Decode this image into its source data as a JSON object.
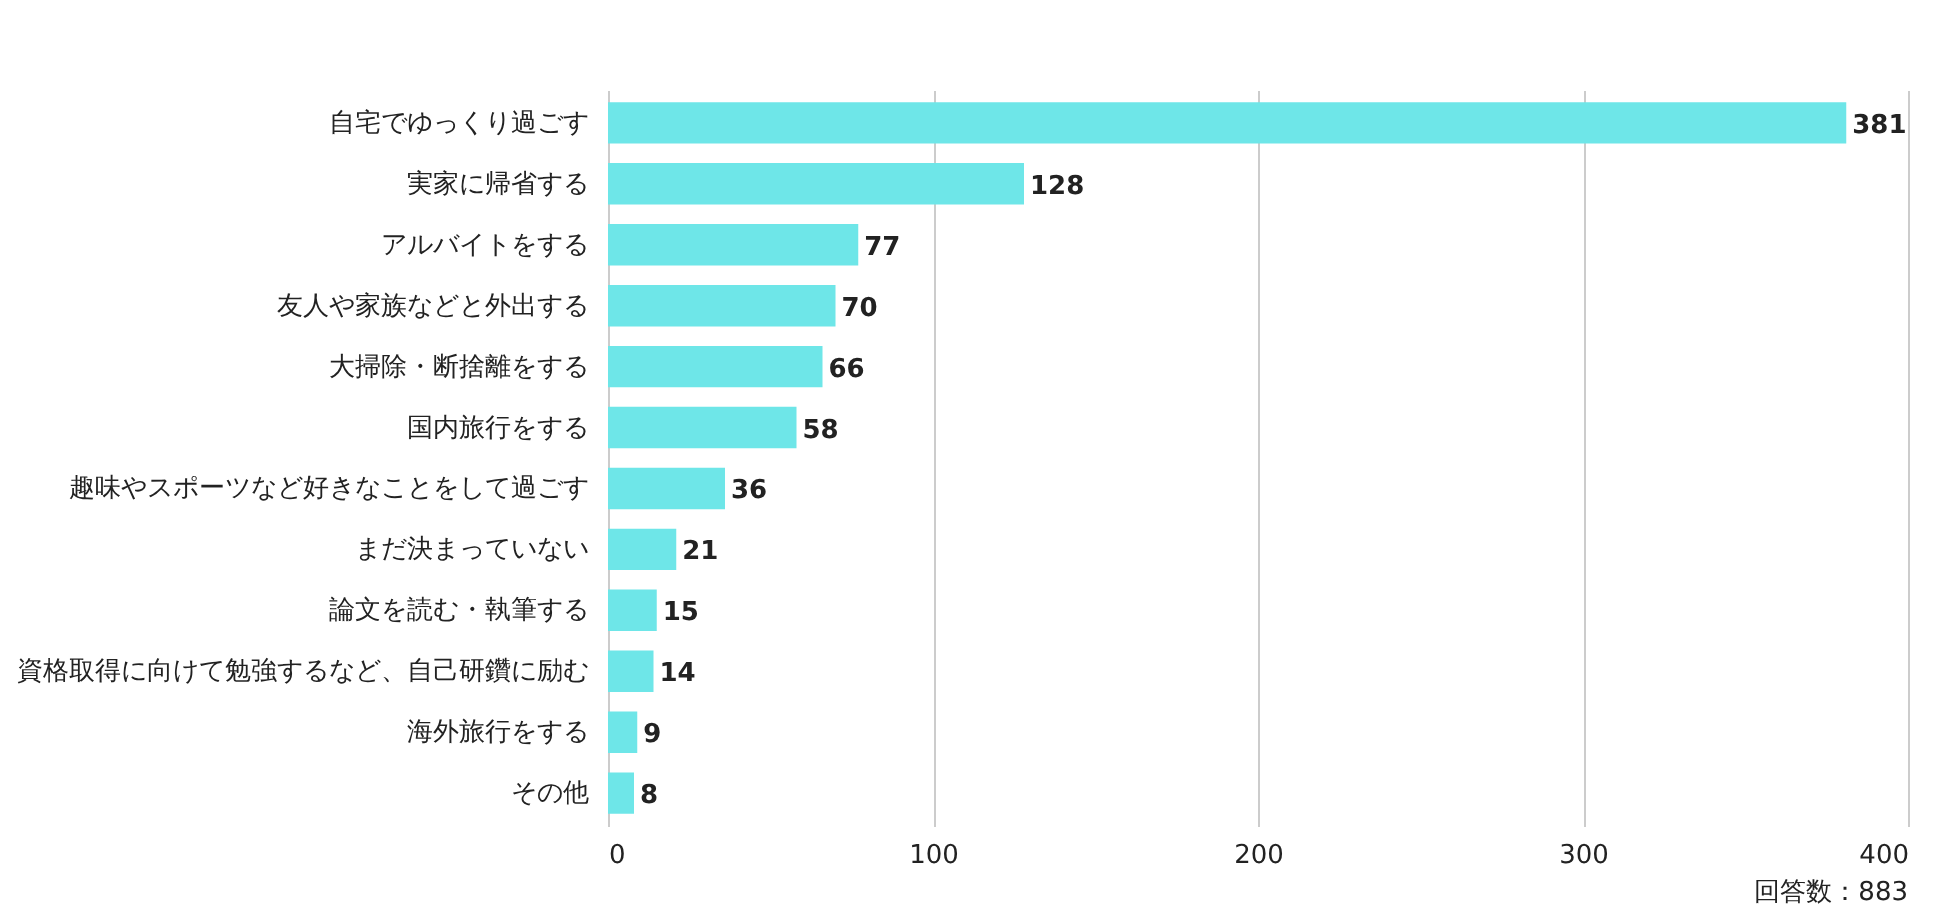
{
  "chart_data": {
    "type": "bar",
    "orientation": "horizontal",
    "categories": [
      "自宅でゆっくり過ごす",
      "実家に帰省する",
      "アルバイトをする",
      "友人や家族などと外出する",
      "大掃除・断捨離をする",
      "国内旅行をする",
      "趣味やスポーツなど好きなことをして過ごす",
      "まだ決まっていない",
      "論文を読む・執筆する",
      "資格取得に向けて勉強するなど、自己研鑽に励む",
      "海外旅行をする",
      "その他"
    ],
    "values": [
      381,
      128,
      77,
      70,
      66,
      58,
      36,
      21,
      15,
      14,
      9,
      8
    ],
    "color": "#6ee6e8",
    "xlim": [
      0,
      400
    ],
    "xticks": [
      0,
      100,
      200,
      300,
      400
    ],
    "grid": "x",
    "data_labels": true,
    "annotations": [
      "回答数：883"
    ]
  }
}
